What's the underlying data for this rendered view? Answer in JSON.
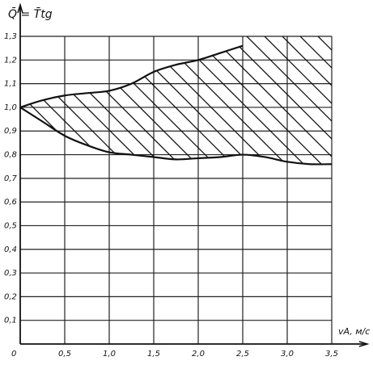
{
  "chart_data": {
    "type": "area",
    "title": "",
    "ylabel": "Q̄ = T̄tg",
    "xlabel": "vA, м/с",
    "xlim": [
      0,
      3.5
    ],
    "ylim": [
      0,
      1.3
    ],
    "grid": true,
    "hatched": true,
    "origin_label": "0",
    "xticks": [
      "0,5",
      "1,0",
      "1,5",
      "2,0",
      "2,5",
      "3,0",
      "3,5"
    ],
    "yticks": [
      "0,1",
      "0,2",
      "0,3",
      "0,4",
      "0,5",
      "0,6",
      "0,7",
      "0,8",
      "0,9",
      "1,0",
      "1,1",
      "1,2",
      "1,3"
    ],
    "series": [
      {
        "x": [
          0,
          0.25,
          0.5,
          0.75,
          1.0,
          1.25,
          1.5,
          1.75,
          2.0,
          2.25,
          2.5
        ],
        "values": [
          1.0,
          1.03,
          1.05,
          1.06,
          1.07,
          1.1,
          1.15,
          1.18,
          1.2,
          1.23,
          1.26
        ]
      },
      {
        "x": [
          0,
          0.25,
          0.5,
          0.75,
          1.0,
          1.25,
          1.5,
          1.75,
          2.0,
          2.25,
          2.5,
          2.75,
          3.0,
          3.25,
          3.5
        ],
        "values": [
          1.0,
          0.94,
          0.88,
          0.84,
          0.81,
          0.8,
          0.79,
          0.78,
          0.785,
          0.79,
          0.8,
          0.79,
          0.77,
          0.76,
          0.76
        ]
      }
    ]
  }
}
